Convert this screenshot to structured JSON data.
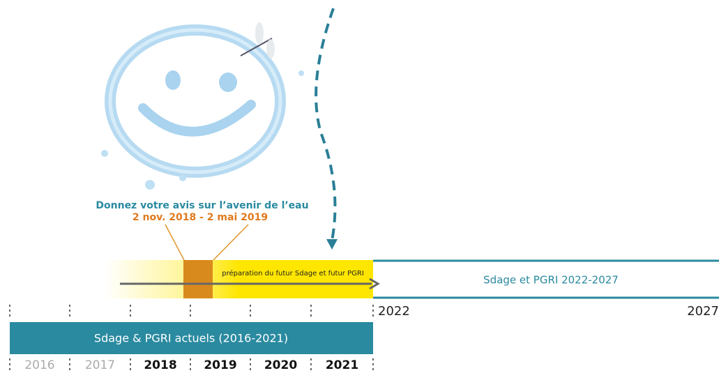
{
  "consultation": {
    "title": "Donnez votre avis sur l’avenir de l’eau",
    "dates": "2 nov. 2018 - 2 mai 2019"
  },
  "preparation": "préparation du futur Sdage et futur PGRI",
  "future_plan": {
    "label": "Sdage et PGRI 2022-2027",
    "start": "2022",
    "end": "2027"
  },
  "current_plan": "Sdage & PGRI actuels (2016-2021)",
  "years": [
    "2016",
    "2017",
    "2018",
    "2019",
    "2020",
    "2021"
  ]
}
